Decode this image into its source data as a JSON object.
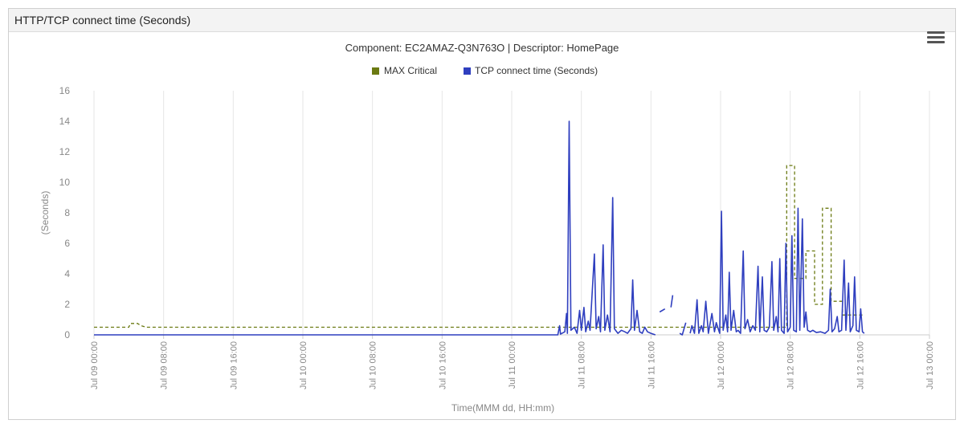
{
  "panel": {
    "title": "HTTP/TCP connect time (Seconds)"
  },
  "menu": {
    "icon": "hamburger-menu-icon"
  },
  "colors": {
    "max_critical": "#6b7a12",
    "tcp": "#2f3fbf",
    "grid": "#e6e6e6",
    "axis_text": "#888888"
  },
  "chart_data": {
    "type": "line",
    "title": "Component: EC2AMAZ-Q3N763O | Descriptor: HomePage",
    "xlabel": "Time(MMM dd, HH:mm)",
    "ylabel": "(Seconds)",
    "ylim": [
      0,
      16
    ],
    "xlim": [
      0,
      96
    ],
    "x_unit": "hours since Jul 09 00:00",
    "yticks": [
      0,
      2,
      4,
      6,
      8,
      10,
      12,
      14,
      16
    ],
    "xticks": [
      {
        "x": 0,
        "label": "Jul 09 00:00"
      },
      {
        "x": 8,
        "label": "Jul 09 08:00"
      },
      {
        "x": 16,
        "label": "Jul 09 16:00"
      },
      {
        "x": 24,
        "label": "Jul 10 00:00"
      },
      {
        "x": 32,
        "label": "Jul 10 08:00"
      },
      {
        "x": 40,
        "label": "Jul 10 16:00"
      },
      {
        "x": 48,
        "label": "Jul 11 00:00"
      },
      {
        "x": 56,
        "label": "Jul 11 08:00"
      },
      {
        "x": 64,
        "label": "Jul 11 16:00"
      },
      {
        "x": 72,
        "label": "Jul 12 00:00"
      },
      {
        "x": 80,
        "label": "Jul 12 08:00"
      },
      {
        "x": 88,
        "label": "Jul 12 16:00"
      },
      {
        "x": 96,
        "label": "Jul 13 00:00"
      }
    ],
    "legend_position": "top-center",
    "grid": true,
    "series": [
      {
        "name": "MAX Critical",
        "style": "dashed",
        "points": [
          [
            0,
            0.5
          ],
          [
            4.0,
            0.5
          ],
          [
            4.2,
            0.75
          ],
          [
            5.0,
            0.75
          ],
          [
            5.4,
            0.6
          ],
          [
            6.0,
            0.5
          ],
          [
            53.5,
            0.5
          ],
          [
            53.6,
            0.5
          ],
          [
            62,
            0.5
          ],
          [
            68,
            0.5
          ],
          [
            75,
            0.5
          ],
          [
            79,
            0.5
          ],
          [
            79.6,
            0.5
          ],
          [
            79.6,
            11.1
          ],
          [
            80.5,
            11.1
          ],
          [
            80.5,
            3.7
          ],
          [
            81.8,
            3.7
          ],
          [
            81.8,
            5.5
          ],
          [
            82.8,
            5.5
          ],
          [
            82.8,
            2.0
          ],
          [
            83.7,
            2.0
          ],
          [
            83.7,
            8.3
          ],
          [
            84.7,
            8.3
          ],
          [
            84.7,
            2.2
          ],
          [
            86.0,
            2.2
          ],
          [
            86.0,
            1.3
          ],
          [
            88.5,
            1.3
          ]
        ]
      },
      {
        "name": "TCP connect time (Seconds)",
        "segments": [
          [
            [
              0,
              0
            ],
            [
              53.3,
              0
            ],
            [
              53.5,
              0.6
            ],
            [
              53.6,
              0.05
            ],
            [
              54.1,
              0.2
            ],
            [
              54.3,
              1.4
            ],
            [
              54.4,
              0.1
            ],
            [
              54.6,
              14.0
            ],
            [
              54.8,
              0.3
            ],
            [
              55.2,
              0.5
            ],
            [
              55.5,
              0.1
            ],
            [
              55.8,
              1.6
            ],
            [
              56.0,
              0.3
            ],
            [
              56.3,
              1.8
            ],
            [
              56.5,
              0.2
            ],
            [
              56.8,
              0.9
            ],
            [
              57.0,
              0.3
            ],
            [
              57.5,
              5.3
            ],
            [
              57.7,
              0.4
            ],
            [
              58.0,
              1.2
            ],
            [
              58.2,
              0.2
            ],
            [
              58.5,
              5.9
            ],
            [
              58.7,
              0.3
            ],
            [
              59.0,
              1.3
            ],
            [
              59.3,
              0.2
            ],
            [
              59.6,
              9.0
            ],
            [
              59.8,
              0.4
            ],
            [
              60.2,
              0.1
            ],
            [
              60.6,
              0.3
            ],
            [
              61.0,
              0.2
            ],
            [
              61.3,
              0.1
            ],
            [
              61.7,
              0.4
            ],
            [
              61.9,
              3.6
            ],
            [
              62.1,
              0.3
            ],
            [
              62.4,
              1.6
            ],
            [
              62.7,
              0.2
            ],
            [
              63.0,
              0.1
            ],
            [
              63.3,
              0.5
            ],
            [
              63.6,
              0.2
            ],
            [
              64.0,
              0.1
            ],
            [
              64.5,
              0.0
            ]
          ],
          [
            [
              65.0,
              1.5
            ],
            [
              65.6,
              1.7
            ]
          ],
          [
            [
              66.3,
              1.8
            ],
            [
              66.5,
              2.6
            ]
          ],
          [
            [
              67.3,
              0.1
            ],
            [
              67.6,
              0.0
            ],
            [
              68.0,
              0.8
            ]
          ],
          [
            [
              68.5,
              0.1
            ],
            [
              68.7,
              0.6
            ],
            [
              69.0,
              0.1
            ],
            [
              69.3,
              2.3
            ],
            [
              69.5,
              0.1
            ],
            [
              69.8,
              0.6
            ],
            [
              70.0,
              0.2
            ],
            [
              70.3,
              2.2
            ],
            [
              70.6,
              0.1
            ],
            [
              71.0,
              1.4
            ],
            [
              71.3,
              0.2
            ],
            [
              71.5,
              0.8
            ],
            [
              71.9,
              0.1
            ],
            [
              72.1,
              8.1
            ],
            [
              72.3,
              0.3
            ],
            [
              72.6,
              1.3
            ],
            [
              72.8,
              0.2
            ],
            [
              73.0,
              4.1
            ],
            [
              73.2,
              0.3
            ],
            [
              73.5,
              1.6
            ],
            [
              73.8,
              0.2
            ],
            [
              74.0,
              0.3
            ],
            [
              74.3,
              0.1
            ],
            [
              74.6,
              5.5
            ],
            [
              74.8,
              0.4
            ],
            [
              75.1,
              1.0
            ],
            [
              75.4,
              0.2
            ],
            [
              75.7,
              0.6
            ],
            [
              76.0,
              0.3
            ],
            [
              76.3,
              4.5
            ],
            [
              76.5,
              0.2
            ],
            [
              76.8,
              3.8
            ],
            [
              77.0,
              0.3
            ],
            [
              77.3,
              0.2
            ],
            [
              77.6,
              0.5
            ],
            [
              77.9,
              4.8
            ],
            [
              78.1,
              0.3
            ],
            [
              78.4,
              1.2
            ],
            [
              78.6,
              0.2
            ],
            [
              78.8,
              5.0
            ],
            [
              79.0,
              0.3
            ],
            [
              79.3,
              0.1
            ],
            [
              79.5,
              6.0
            ],
            [
              79.7,
              0.2
            ],
            [
              80.0,
              0.5
            ],
            [
              80.2,
              6.5
            ],
            [
              80.4,
              0.3
            ],
            [
              80.7,
              0.2
            ],
            [
              80.9,
              8.3
            ],
            [
              81.1,
              0.3
            ],
            [
              81.4,
              7.6
            ],
            [
              81.6,
              0.5
            ],
            [
              81.8,
              1.5
            ],
            [
              82.0,
              0.3
            ],
            [
              82.3,
              0.2
            ],
            [
              82.6,
              0.3
            ],
            [
              83.0,
              0.15
            ],
            [
              83.5,
              0.2
            ],
            [
              84.0,
              0.1
            ],
            [
              84.4,
              0.3
            ],
            [
              84.6,
              3.0
            ],
            [
              84.8,
              0.2
            ],
            [
              85.1,
              0.4
            ],
            [
              85.4,
              1.2
            ],
            [
              85.6,
              0.2
            ],
            [
              85.9,
              0.3
            ],
            [
              86.2,
              4.9
            ],
            [
              86.4,
              0.3
            ],
            [
              86.7,
              3.4
            ],
            [
              86.9,
              0.2
            ],
            [
              87.2,
              0.6
            ],
            [
              87.4,
              3.8
            ],
            [
              87.6,
              0.3
            ],
            [
              87.9,
              0.2
            ],
            [
              88.1,
              1.7
            ],
            [
              88.3,
              0.2
            ],
            [
              88.5,
              0.1
            ]
          ]
        ]
      }
    ]
  }
}
